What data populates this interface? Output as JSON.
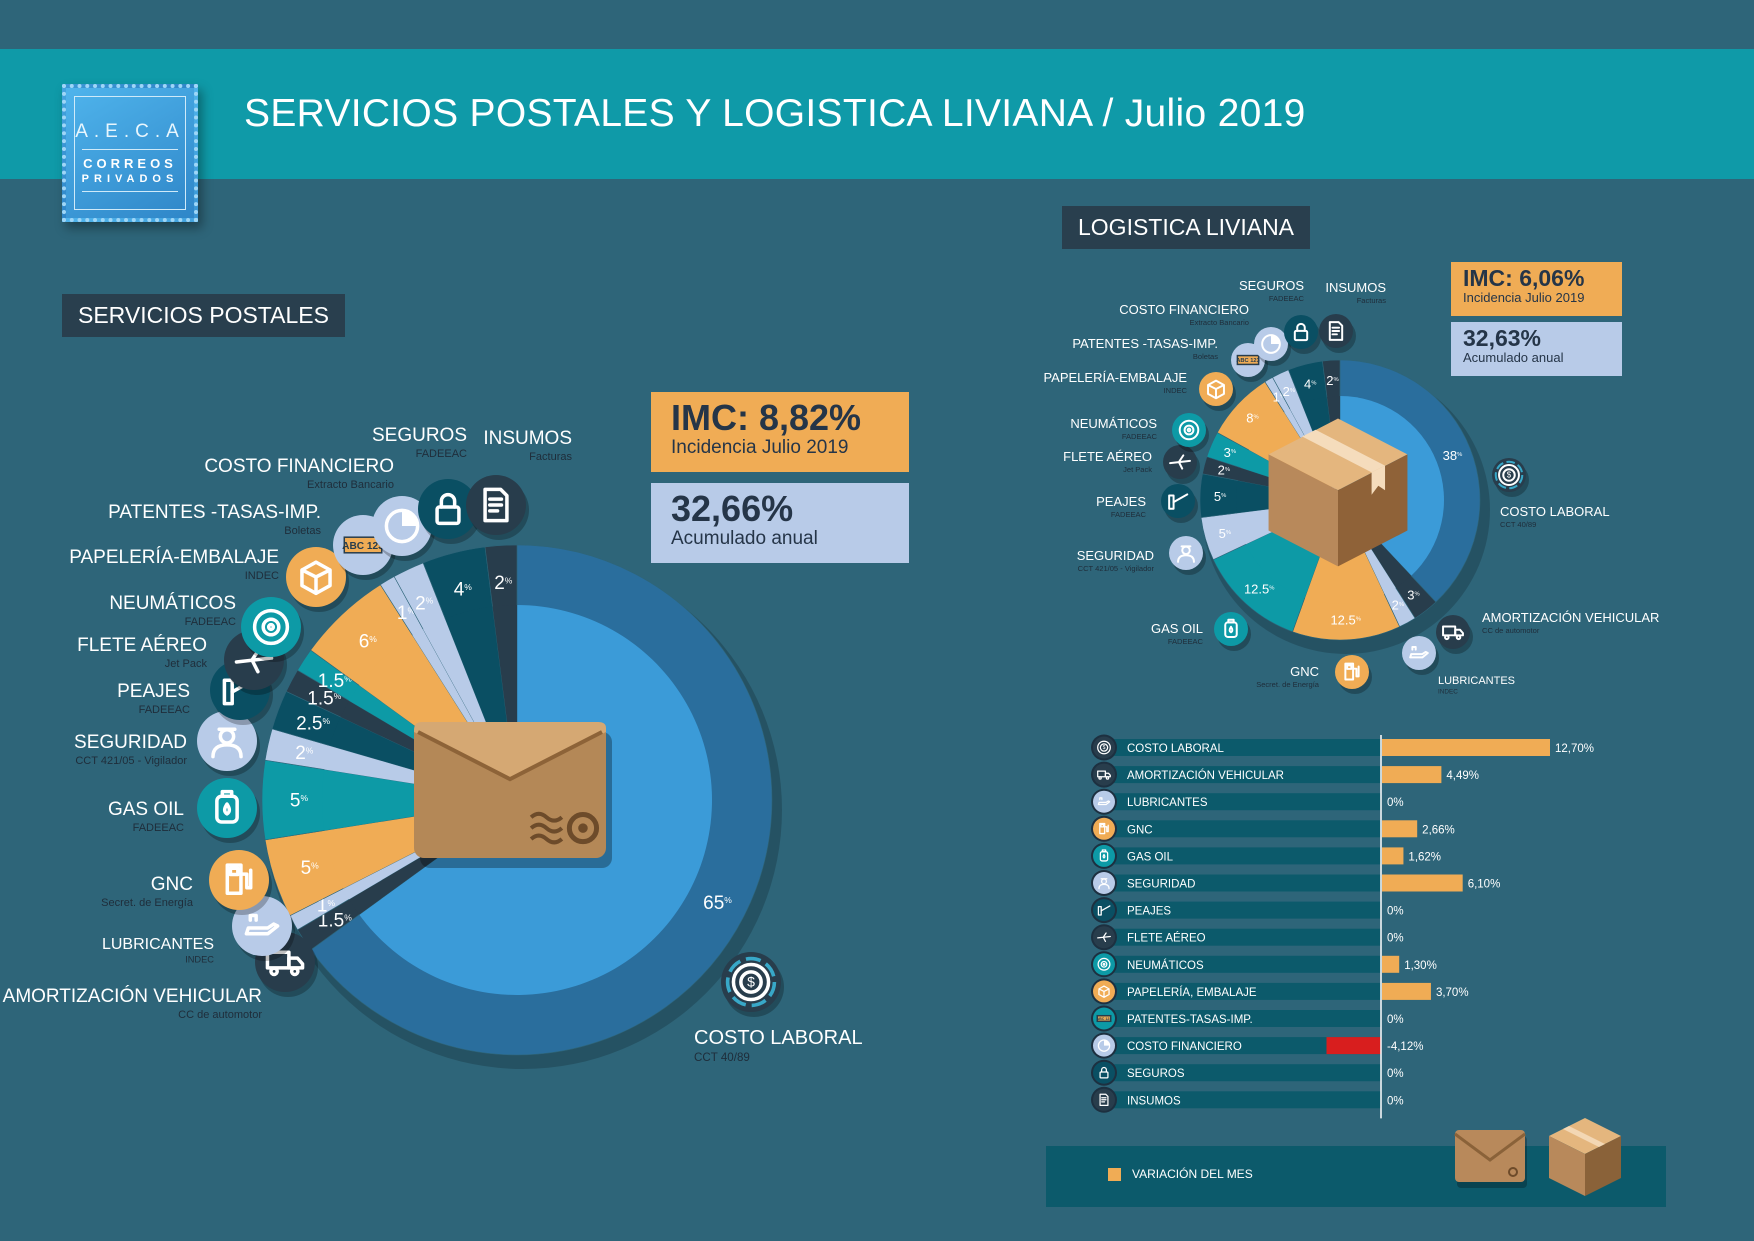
{
  "header": {
    "logo": {
      "line1": "A.E.C.A",
      "line2": "CORREOS",
      "line3": "PRIVADOS"
    },
    "title": "SERVICIOS POSTALES Y LOGISTICA LIVIANA  / Julio 2019"
  },
  "postales": {
    "section_label": "SERVICIOS POSTALES",
    "imc": {
      "value": "IMC: 8,82%",
      "subtitle": "Incidencia Julio 2019"
    },
    "acumulado": {
      "value": "32,66%",
      "subtitle": "Acumulado anual"
    }
  },
  "logistica": {
    "section_label": "LOGISTICA LIVIANA",
    "imc": {
      "value": "IMC: 6,06%",
      "subtitle": "Incidencia Julio 2019"
    },
    "acumulado": {
      "value": "32,63%",
      "subtitle": "Acumulado anual"
    }
  },
  "legend": {
    "label": "VARIACIÓN DEL MES"
  },
  "colors": {
    "background": "#2e6579",
    "header": "#0f9aa8",
    "accent_orange": "#f0ac55",
    "accent_blue": "#3b9bd8",
    "dark_blue": "#2a6e9d",
    "teal": "#0d9aa6",
    "light_blue": "#b8cbe8",
    "dark": "#283d4c",
    "negative": "#d81e1e",
    "bar_row": "#0c5a6b"
  },
  "chart_data": [
    {
      "type": "pie",
      "title": "SERVICIOS POSTALES",
      "unit": "%",
      "categories": [
        "COSTO LABORAL",
        "AMORTIZACIÓN VEHICULAR",
        "LUBRICANTES",
        "GNC",
        "GAS OIL",
        "SEGURIDAD",
        "PEAJES",
        "FLETE AÉREO",
        "NEUMÁTICOS",
        "PAPELERÍA-EMBALAJE",
        "PATENTES -TASAS-IMP.",
        "COSTO FINANCIERO",
        "SEGUROS",
        "INSUMOS"
      ],
      "sources": [
        "CCT 40/89",
        "CC de automotor",
        "INDEC",
        "Secret. de Energía",
        "FADEEAC",
        "CCT 421/05 - Vigilador",
        "FADEEAC",
        "Jet Pack",
        "FADEEAC",
        "INDEC",
        "Boletas",
        "Extracto Bancario",
        "FADEEAC",
        "Facturas"
      ],
      "values": [
        65,
        1.5,
        1,
        5,
        5,
        2,
        2.5,
        1.5,
        1.5,
        6,
        1,
        2,
        4,
        2
      ],
      "value_labels": [
        "65",
        "1.5",
        "1",
        "5",
        "5",
        "2",
        "2.5",
        "1.5",
        "1.5",
        "6",
        "1",
        "2",
        "4",
        "2"
      ],
      "colors": [
        "#3b9bd8",
        "#283d4c",
        "#b8cbe8",
        "#f0ac55",
        "#0d9aa6",
        "#b8cbe8",
        "#0a4f63",
        "#283d4c",
        "#0d9aa6",
        "#f0ac55",
        "#b8cbe8",
        "#b8cbe8",
        "#0a4f63",
        "#283d4c"
      ],
      "icons": [
        "dollar-coin-icon",
        "truck-icon",
        "oil-can-icon",
        "gas-pump-icon",
        "fuel-canister-icon",
        "security-guard-icon",
        "toll-barrier-icon",
        "airplane-icon",
        "tire-icon",
        "package-icon",
        "license-plate-icon",
        "pie-chart-icon",
        "padlock-icon",
        "invoice-icon"
      ]
    },
    {
      "type": "pie",
      "title": "LOGISTICA LIVIANA",
      "unit": "%",
      "categories": [
        "COSTO LABORAL",
        "AMORTIZACIÓN VEHICULAR",
        "LUBRICANTES",
        "GNC",
        "GAS OIL",
        "SEGURIDAD",
        "PEAJES",
        "FLETE AÉREO",
        "NEUMÁTICOS",
        "PAPELERÍA-EMBALAJE",
        "PATENTES -TASAS-IMP.",
        "COSTO FINANCIERO",
        "SEGUROS",
        "INSUMOS"
      ],
      "sources": [
        "CCT 40/89",
        "CC de automotor",
        "INDEC",
        "Secret. de Energía",
        "FADEEAC",
        "CCT 421/05 - Vigilador",
        "FADEEAC",
        "Jet Pack",
        "FADEEAC",
        "INDEC",
        "Boletas",
        "Extracto Bancario",
        "FADEEAC",
        "Facturas"
      ],
      "values": [
        38,
        3,
        2,
        12.5,
        12.5,
        5,
        5,
        2,
        3,
        8,
        1,
        2,
        4,
        2
      ],
      "value_labels": [
        "38",
        "3",
        "2",
        "12.5",
        "12.5",
        "5",
        "5",
        "2",
        "3",
        "8",
        "1",
        "2",
        "4",
        "2"
      ],
      "colors": [
        "#3b9bd8",
        "#283d4c",
        "#b8cbe8",
        "#f0ac55",
        "#0d9aa6",
        "#b8cbe8",
        "#0a4f63",
        "#283d4c",
        "#0d9aa6",
        "#f0ac55",
        "#b8cbe8",
        "#b8cbe8",
        "#0a4f63",
        "#283d4c"
      ],
      "icons": [
        "dollar-coin-icon",
        "truck-icon",
        "oil-can-icon",
        "gas-pump-icon",
        "fuel-canister-icon",
        "security-guard-icon",
        "toll-barrier-icon",
        "airplane-icon",
        "tire-icon",
        "package-icon",
        "license-plate-icon",
        "pie-chart-icon",
        "padlock-icon",
        "invoice-icon"
      ]
    },
    {
      "type": "bar",
      "orientation": "horizontal",
      "series": [
        {
          "name": "VARIACIÓN DEL MES",
          "values": [
            12.7,
            4.49,
            0,
            2.66,
            1.62,
            6.1,
            0,
            0,
            1.3,
            3.7,
            0,
            -4.12,
            0,
            0
          ]
        }
      ],
      "categories": [
        "COSTO LABORAL",
        "AMORTIZACIÓN VEHICULAR",
        "LUBRICANTES",
        "GNC",
        "GAS OIL",
        "SEGURIDAD",
        "PEAJES",
        "FLETE AÉREO",
        "NEUMÁTICOS",
        "PAPELERÍA, EMBALAJE",
        "PATENTES-TASAS-IMP.",
        "COSTO FINANCIERO",
        "SEGUROS",
        "INSUMOS"
      ],
      "value_labels": [
        "12,70%",
        "4,49%",
        "0%",
        "2,66%",
        "1,62%",
        "6,10%",
        "0%",
        "0%",
        "1,30%",
        "3,70%",
        "0%",
        "-4,12%",
        "0%",
        "0%"
      ],
      "icons": [
        "dollar-coin-icon",
        "truck-icon",
        "oil-can-icon",
        "gas-pump-icon",
        "fuel-canister-icon",
        "security-guard-icon",
        "toll-barrier-icon",
        "airplane-icon",
        "tire-icon",
        "package-icon",
        "license-plate-icon",
        "pie-chart-icon",
        "padlock-icon",
        "invoice-icon"
      ],
      "icon_colors": [
        "#283d4c",
        "#283d4c",
        "#b8cbe8",
        "#f0ac55",
        "#0d9aa6",
        "#b8cbe8",
        "#0a4f63",
        "#283d4c",
        "#0d9aa6",
        "#f0ac55",
        "#0d9aa6",
        "#b8cbe8",
        "#0a4f63",
        "#283d4c"
      ],
      "legend": "bottom",
      "positive_color": "#f0ac55",
      "negative_color": "#d81e1e"
    }
  ]
}
